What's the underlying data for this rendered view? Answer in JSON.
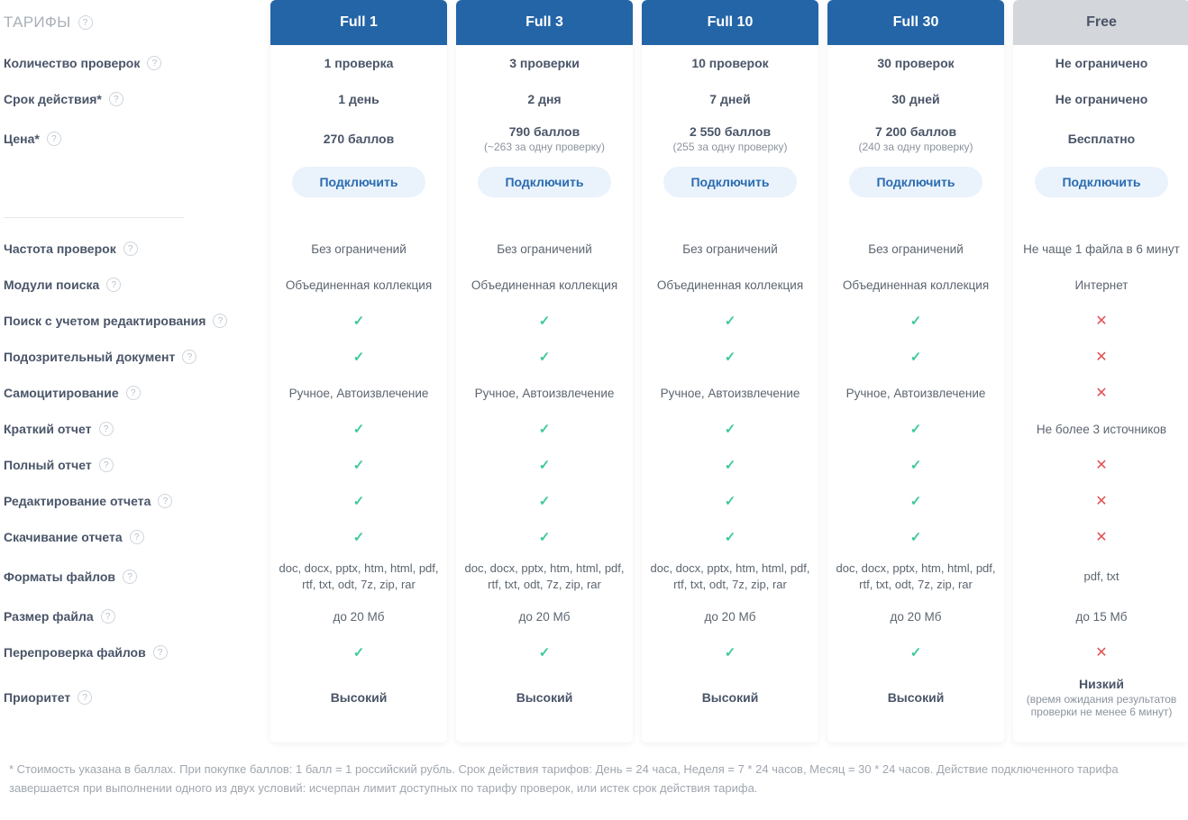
{
  "colors": {
    "header_bg": "#2465a8",
    "header_free_bg": "#d3d6da",
    "accent_blue": "#2a6bb0",
    "btn_bg": "#eaf3fc",
    "check": "#3fc99a",
    "cross": "#e15151",
    "title_gray": "#a9b0b8",
    "text": "#4a5568"
  },
  "title": "ТАРИФЫ",
  "labels": {
    "checks_count": "Количество проверок",
    "duration": "Срок действия*",
    "price": "Цена*",
    "check_frequency": "Частота проверок",
    "search_modules": "Модули поиска",
    "search_with_edit": "Поиск с учетом редактирования",
    "suspicious_doc": "Подозрительный документ",
    "self_citation": "Самоцитирование",
    "short_report": "Краткий отчет",
    "full_report": "Полный отчет",
    "edit_report": "Редактирование отчета",
    "download_report": "Скачивание отчета",
    "file_formats": "Форматы файлов",
    "file_size": "Размер файла",
    "recheck": "Перепроверка файлов",
    "priority": "Приоритет"
  },
  "connect_label": "Подключить",
  "plans": [
    {
      "id": "full1",
      "name": "Full 1",
      "checks_count": "1 проверка",
      "duration": "1 день",
      "price": "270 баллов",
      "price_sub": "",
      "check_frequency": "Без ограничений",
      "search_modules": "Объединенная коллекция",
      "search_with_edit": "check",
      "suspicious_doc": "check",
      "self_citation": "Ручное, Автоизвлечение",
      "short_report": "check",
      "full_report": "check",
      "edit_report": "check",
      "download_report": "check",
      "file_formats": "doc, docx, pptx, htm, html, pdf, rtf, txt, odt, 7z, zip, rar",
      "file_size": "до 20 Мб",
      "recheck": "check",
      "priority": "Высокий",
      "priority_sub": ""
    },
    {
      "id": "full3",
      "name": "Full 3",
      "checks_count": "3 проверки",
      "duration": "2 дня",
      "price": "790 баллов",
      "price_sub": "(~263 за одну проверку)",
      "check_frequency": "Без ограничений",
      "search_modules": "Объединенная коллекция",
      "search_with_edit": "check",
      "suspicious_doc": "check",
      "self_citation": "Ручное, Автоизвлечение",
      "short_report": "check",
      "full_report": "check",
      "edit_report": "check",
      "download_report": "check",
      "file_formats": "doc, docx, pptx, htm, html, pdf, rtf, txt, odt, 7z, zip, rar",
      "file_size": "до 20 Мб",
      "recheck": "check",
      "priority": "Высокий",
      "priority_sub": ""
    },
    {
      "id": "full10",
      "name": "Full 10",
      "checks_count": "10 проверок",
      "duration": "7 дней",
      "price": "2 550 баллов",
      "price_sub": "(255 за одну проверку)",
      "check_frequency": "Без ограничений",
      "search_modules": "Объединенная коллекция",
      "search_with_edit": "check",
      "suspicious_doc": "check",
      "self_citation": "Ручное, Автоизвлечение",
      "short_report": "check",
      "full_report": "check",
      "edit_report": "check",
      "download_report": "check",
      "file_formats": "doc, docx, pptx, htm, html, pdf, rtf, txt, odt, 7z, zip, rar",
      "file_size": "до 20 Мб",
      "recheck": "check",
      "priority": "Высокий",
      "priority_sub": ""
    },
    {
      "id": "full30",
      "name": "Full 30",
      "checks_count": "30 проверок",
      "duration": "30 дней",
      "price": "7 200 баллов",
      "price_sub": "(240 за одну проверку)",
      "check_frequency": "Без ограничений",
      "search_modules": "Объединенная коллекция",
      "search_with_edit": "check",
      "suspicious_doc": "check",
      "self_citation": "Ручное, Автоизвлечение",
      "short_report": "check",
      "full_report": "check",
      "edit_report": "check",
      "download_report": "check",
      "file_formats": "doc, docx, pptx, htm, html, pdf, rtf, txt, odt, 7z, zip, rar",
      "file_size": "до 20 Мб",
      "recheck": "check",
      "priority": "Высокий",
      "priority_sub": ""
    },
    {
      "id": "free",
      "name": "Free",
      "checks_count": "Не ограничено",
      "duration": "Не ограничено",
      "price": "Бесплатно",
      "price_sub": "",
      "check_frequency": "Не чаще 1 файла в 6 минут",
      "search_modules": "Интернет",
      "search_with_edit": "cross",
      "suspicious_doc": "cross",
      "self_citation": "cross",
      "short_report": "Не более 3 источников",
      "full_report": "cross",
      "edit_report": "cross",
      "download_report": "cross",
      "file_formats": "pdf, txt",
      "file_size": "до 15 Мб",
      "recheck": "cross",
      "priority": "Низкий",
      "priority_sub": "(время ожидания результатов проверки не менее 6 минут)"
    }
  ],
  "footnote": "* Стоимость указана в баллах. При покупке баллов: 1 балл = 1 российский рубль. Срок действия тарифов: День = 24 часа, Неделя = 7 * 24 часов, Месяц = 30 * 24 часов. Действие подключенного тарифа завершается при выполнении одного из двух условий: исчерпан лимит доступных по тарифу проверок, или истек срок действия тарифа."
}
